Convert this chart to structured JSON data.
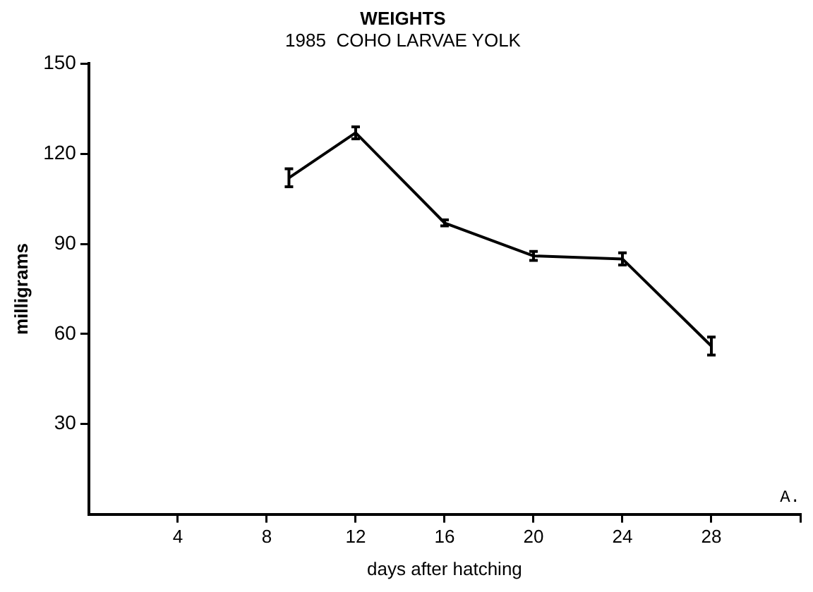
{
  "chart_data": {
    "type": "line",
    "title": "WEIGHTS",
    "subtitle": "1985  COHO LARVAE YOLK",
    "xlabel": "days after hatching",
    "ylabel": "milligrams",
    "x": [
      9,
      12,
      16,
      20,
      24,
      28
    ],
    "values": [
      112,
      127,
      97,
      86,
      85,
      56
    ],
    "errors": [
      3,
      2,
      1,
      1.5,
      2,
      3
    ],
    "color": "#000000",
    "line_style": "solid",
    "grid": false,
    "legend": false,
    "xlim": [
      0,
      32
    ],
    "xticks": [
      4,
      8,
      12,
      16,
      20,
      24,
      28,
      {
        "value": 32,
        "label": null
      }
    ],
    "ylim": [
      0,
      150
    ],
    "yticks": [
      30,
      60,
      90,
      120,
      150
    ],
    "annotations": [
      "A."
    ]
  }
}
